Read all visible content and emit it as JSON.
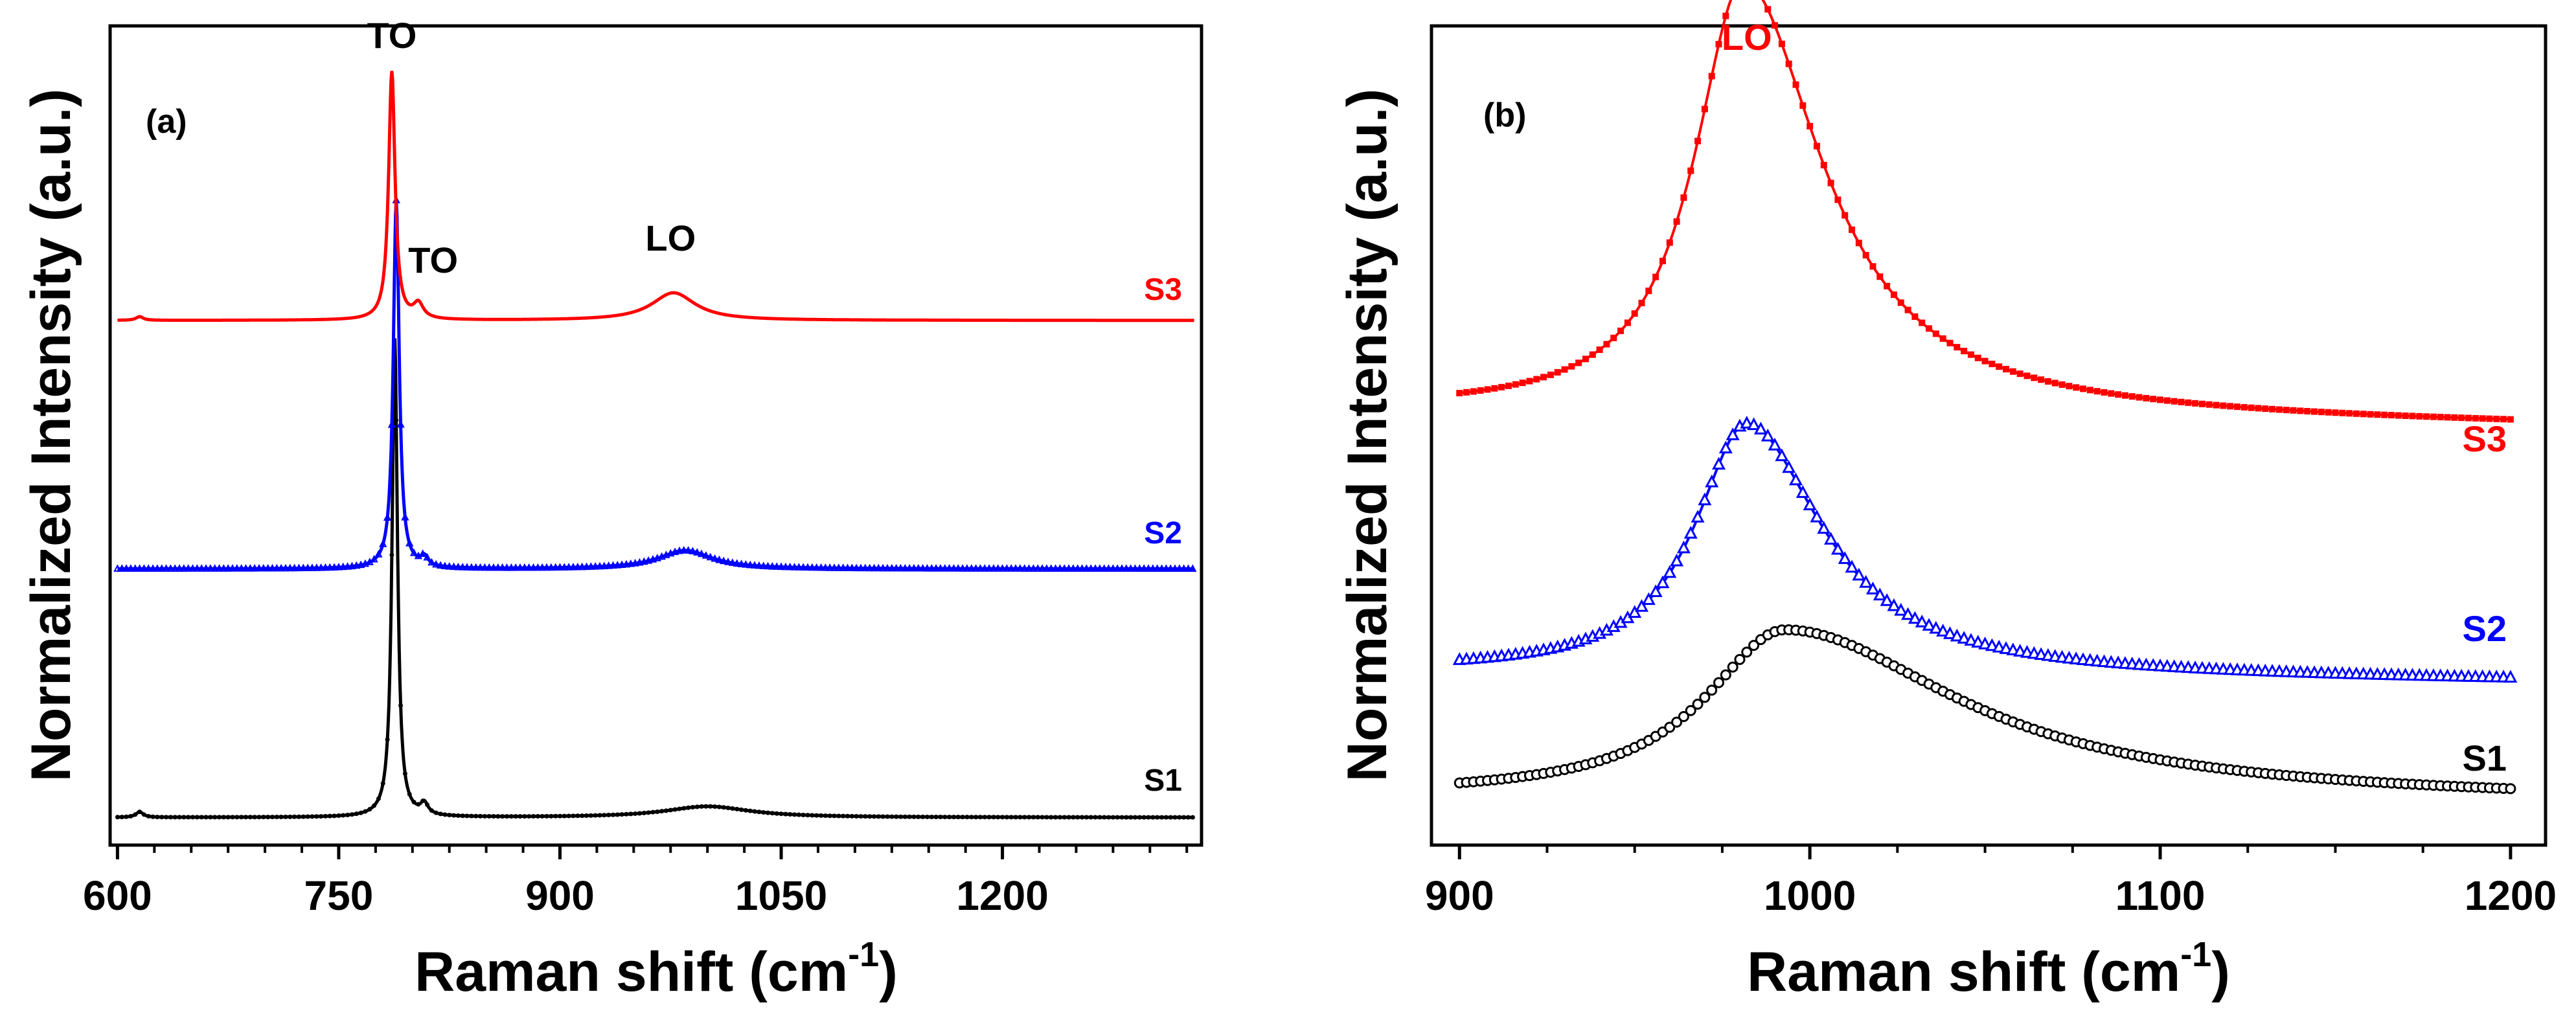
{
  "chart_data": [
    {
      "type": "line",
      "panel": "(a)",
      "title": "",
      "xlabel": "Raman shift (cm",
      "xlabel_sup": "-1",
      "xlabel_close": ")",
      "ylabel": "Normalized Intensity (a.u.)",
      "xlim": [
        595,
        1335
      ],
      "ylim": [
        -0.15,
        4.3
      ],
      "xticks": [
        "600",
        "750",
        "900",
        "1050",
        "1200"
      ],
      "xtick_values": [
        600,
        750,
        900,
        1050,
        1200
      ],
      "series": [
        {
          "name": "S1",
          "color": "#000000",
          "marker": "circle-small",
          "offset": 0.0,
          "baseline": 0.0,
          "peaks": [
            {
              "x": 788,
              "height": 2.6,
              "width": 2.2,
              "shape": "lorentz"
            },
            {
              "x": 808,
              "height": 0.06,
              "width": 3,
              "shape": "lorentz"
            },
            {
              "x": 615,
              "height": 0.03,
              "width": 3,
              "shape": "lorentz"
            },
            {
              "x": 1000,
              "height": 0.06,
              "width": 35,
              "shape": "lorentz"
            }
          ]
        },
        {
          "name": "S2",
          "color": "#0000ff",
          "marker": "triangle-small",
          "offset": 1.35,
          "baseline": 0.0,
          "peaks": [
            {
              "x": 789,
              "height": 2.0,
              "width": 2.4,
              "shape": "lorentz"
            },
            {
              "x": 808,
              "height": 0.05,
              "width": 3,
              "shape": "lorentz"
            },
            {
              "x": 985,
              "height": 0.1,
              "width": 22,
              "shape": "lorentz"
            }
          ]
        },
        {
          "name": "S3",
          "color": "#ff0000",
          "marker": "line",
          "offset": 2.7,
          "baseline": 0.0,
          "peaks": [
            {
              "x": 786,
              "height": 1.35,
              "width": 2.6,
              "shape": "lorentz"
            },
            {
              "x": 804,
              "height": 0.08,
              "width": 4,
              "shape": "lorentz"
            },
            {
              "x": 615,
              "height": 0.02,
              "width": 3,
              "shape": "lorentz"
            },
            {
              "x": 977,
              "height": 0.15,
              "width": 18,
              "shape": "lorentz"
            }
          ]
        }
      ],
      "series_labels": [
        {
          "name": "S3",
          "text": "S3",
          "color": "#ff0000"
        },
        {
          "name": "S2",
          "text": "S2",
          "color": "#0000ff"
        },
        {
          "name": "S1",
          "text": "S1",
          "color": "#000000"
        }
      ],
      "annotations": [
        {
          "text": "TO",
          "x": 786,
          "y": 4.18
        },
        {
          "text": "TO",
          "x": 814,
          "y": 2.96
        },
        {
          "text": "LO",
          "x": 975,
          "y": 3.08
        }
      ]
    },
    {
      "type": "line",
      "panel": "(b)",
      "title": "",
      "xlabel": "Raman shift (cm",
      "xlabel_sup": "-1",
      "xlabel_close": ")",
      "ylabel": "Normalized Intensity (a.u.)",
      "xlim": [
        892,
        1210
      ],
      "ylim": [
        -0.1,
        1.6
      ],
      "xticks": [
        "900",
        "1000",
        "1100",
        "1200"
      ],
      "xtick_values": [
        900,
        1000,
        1100,
        1200
      ],
      "series": [
        {
          "name": "S1",
          "color": "#000000",
          "marker": "circle-open",
          "offset": 0.0,
          "baseline_start": 0.0,
          "baseline_end": -0.01,
          "peaks": [
            {
              "x": 993,
              "height": 0.35,
              "width": 28,
              "shape": "lorentz-asym",
              "right_width": 60
            }
          ]
        },
        {
          "name": "S2",
          "color": "#0000ff",
          "marker": "triangle-open",
          "offset": 0.26,
          "baseline_start": 0.0,
          "baseline_end": -0.02,
          "peaks": [
            {
              "x": 982,
              "height": 0.52,
              "width": 18,
              "shape": "lorentz-asym",
              "right_width": 26
            }
          ]
        },
        {
          "name": "S3",
          "color": "#ff0000",
          "marker": "square-filled",
          "offset": 0.8,
          "baseline_start": 0.0,
          "baseline_end": -0.03,
          "peaks": [
            {
              "x": 981,
              "height": 0.9,
              "width": 17,
              "shape": "lorentz-asym",
              "right_width": 27
            }
          ]
        }
      ],
      "series_labels": [
        {
          "name": "S3",
          "text": "S3",
          "color": "#ff0000"
        },
        {
          "name": "S2",
          "text": "S2",
          "color": "#0000ff"
        },
        {
          "name": "S1",
          "text": "S1",
          "color": "#000000"
        }
      ],
      "annotations": [
        {
          "text": "LO",
          "x": 982,
          "y": 1.55,
          "color": "#ff0000"
        }
      ]
    }
  ]
}
